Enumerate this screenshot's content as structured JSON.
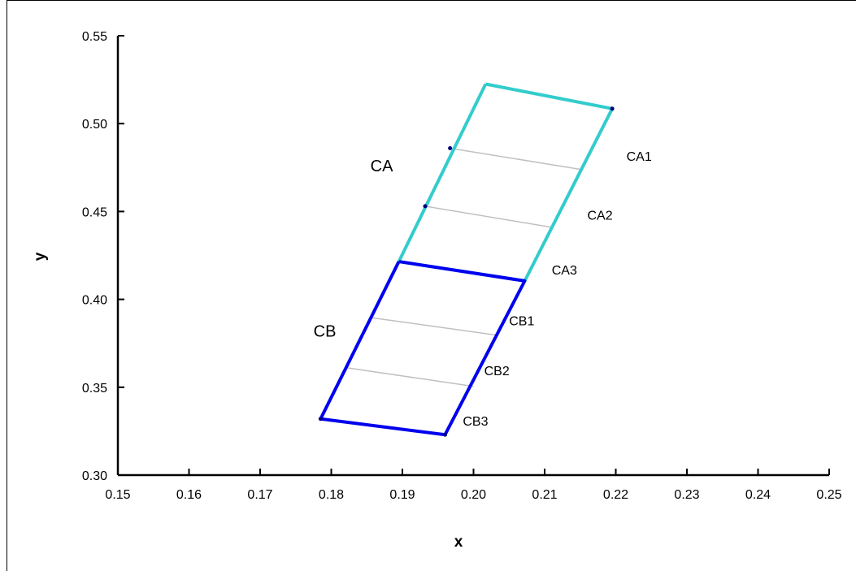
{
  "chart_data": {
    "type": "line",
    "title": "",
    "xlabel": "x",
    "ylabel": "y",
    "xlim": [
      0.15,
      0.25
    ],
    "ylim": [
      0.3,
      0.55
    ],
    "x_ticks": [
      "0.15",
      "0.16",
      "0.17",
      "0.18",
      "0.19",
      "0.20",
      "0.21",
      "0.22",
      "0.23",
      "0.24",
      "0.25"
    ],
    "y_ticks": [
      "0.30",
      "0.35",
      "0.40",
      "0.45",
      "0.50",
      "0.55"
    ],
    "grid": false,
    "colors": {
      "CA": "#33cccc",
      "CB": "#0000ee",
      "dividers": "#c0c0c0",
      "markers": "#000080",
      "axis": "#000000"
    },
    "regions": [
      {
        "name": "CA",
        "label": "CA",
        "outline": [
          [
            0.2017,
            0.5225
          ],
          [
            0.2195,
            0.5085
          ],
          [
            0.2072,
            0.4105
          ],
          [
            0.1895,
            0.4215
          ],
          [
            0.2017,
            0.5225
          ]
        ],
        "dividers": [
          [
            [
              0.1967,
              0.486
            ],
            [
              0.215,
              0.474
            ]
          ],
          [
            [
              0.1932,
              0.453
            ],
            [
              0.211,
              0.441
            ]
          ]
        ],
        "markers": [
          [
            0.2195,
            0.5085
          ],
          [
            0.1967,
            0.486
          ],
          [
            0.1932,
            0.453
          ]
        ],
        "cells": [
          {
            "label": "CA1",
            "x": 0.2215,
            "y": 0.4815
          },
          {
            "label": "CA2",
            "x": 0.216,
            "y": 0.448
          },
          {
            "label": "CA3",
            "x": 0.211,
            "y": 0.417
          }
        ]
      },
      {
        "name": "CB",
        "label": "CB",
        "outline": [
          [
            0.1895,
            0.4215
          ],
          [
            0.2072,
            0.4105
          ],
          [
            0.196,
            0.323
          ],
          [
            0.1785,
            0.332
          ],
          [
            0.1895,
            0.4215
          ]
        ],
        "dividers": [
          [
            [
              0.1858,
              0.3895
            ],
            [
              0.2035,
              0.3795
            ]
          ],
          [
            [
              0.1823,
              0.361
            ],
            [
              0.2,
              0.3505
            ]
          ]
        ],
        "markers": [
          [
            0.1785,
            0.332
          ],
          [
            0.196,
            0.323
          ]
        ],
        "cells": [
          {
            "label": "CB1",
            "x": 0.205,
            "y": 0.388
          },
          {
            "label": "CB2",
            "x": 0.2015,
            "y": 0.3595
          },
          {
            "label": "CB3",
            "x": 0.1985,
            "y": 0.331
          }
        ]
      }
    ],
    "region_labels": [
      {
        "label": "CA",
        "x": 0.1855,
        "y": 0.476
      },
      {
        "label": "CB",
        "x": 0.1775,
        "y": 0.382
      }
    ]
  }
}
